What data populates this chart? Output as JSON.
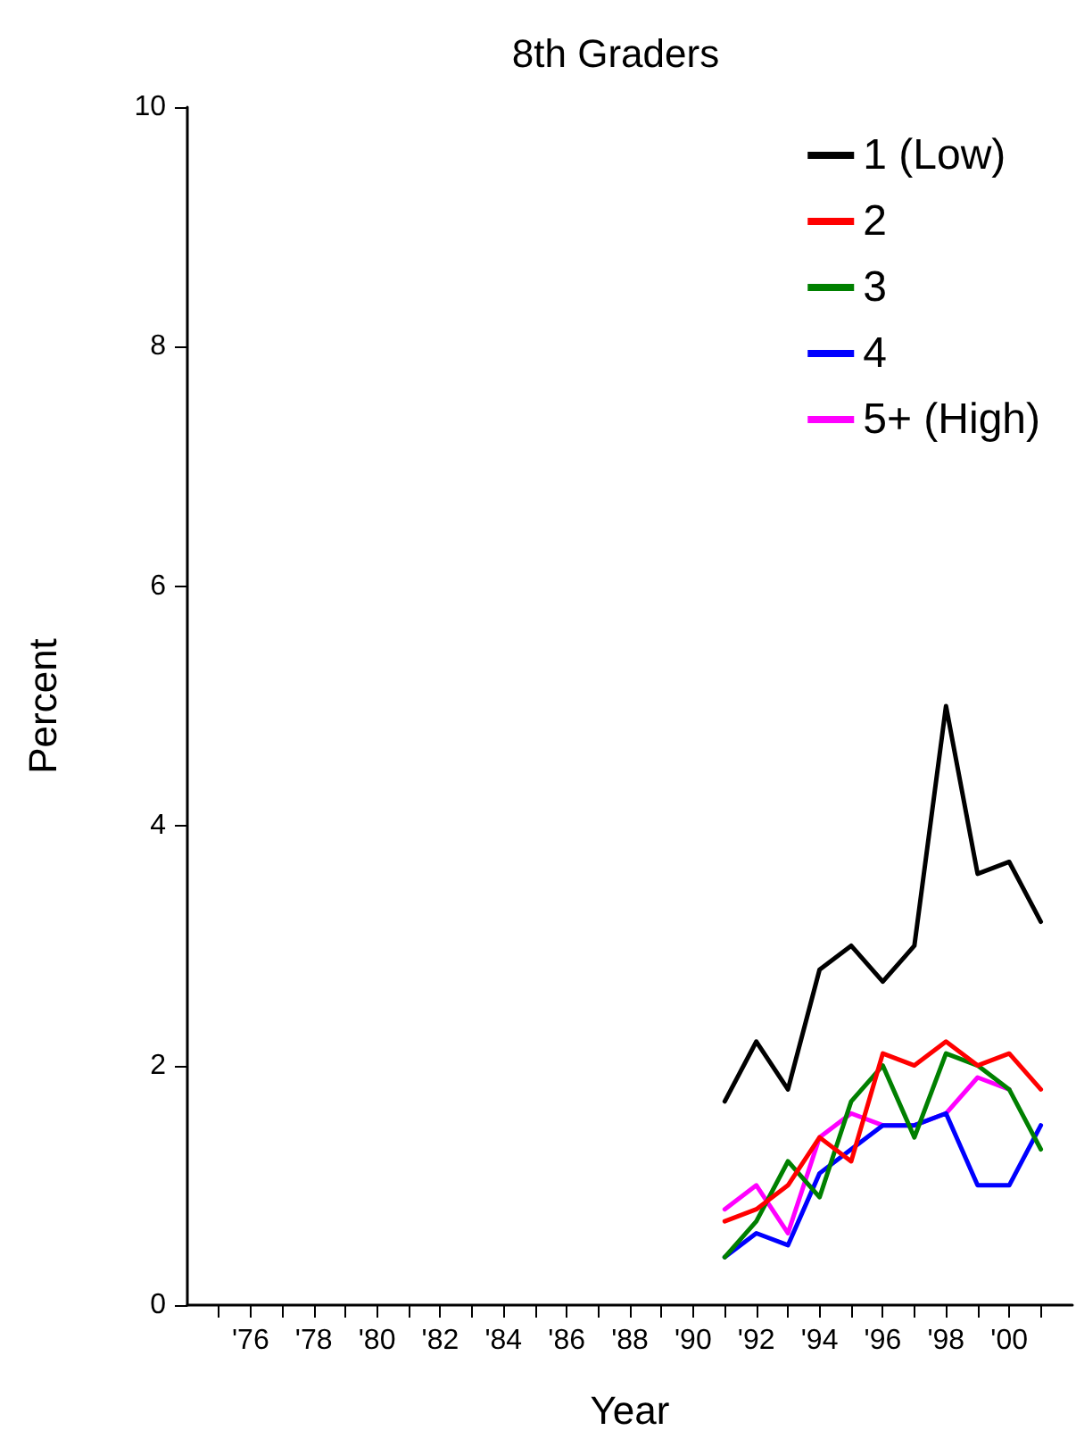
{
  "chart_data": {
    "type": "line",
    "title": "8th Graders",
    "xlabel": "Year",
    "ylabel": "Percent",
    "x": [
      1991,
      1992,
      1993,
      1994,
      1995,
      1996,
      1997,
      1998,
      1999,
      2000,
      2001
    ],
    "series": [
      {
        "name": "1 (Low)",
        "color": "#000000",
        "values": [
          1.7,
          2.2,
          1.8,
          2.8,
          3.0,
          2.7,
          3.0,
          5.0,
          3.6,
          3.7,
          3.2
        ]
      },
      {
        "name": "2",
        "color": "#ff0000",
        "values": [
          0.7,
          0.8,
          1.0,
          1.4,
          1.2,
          2.1,
          2.0,
          2.2,
          2.0,
          2.1,
          1.8
        ]
      },
      {
        "name": "3",
        "color": "#008000",
        "values": [
          0.4,
          0.7,
          1.2,
          0.9,
          1.7,
          2.0,
          1.4,
          2.1,
          2.0,
          1.8,
          1.3
        ]
      },
      {
        "name": "4",
        "color": "#0000ff",
        "values": [
          0.4,
          0.6,
          0.5,
          1.1,
          1.3,
          1.5,
          1.5,
          1.6,
          1.0,
          1.0,
          1.5
        ]
      },
      {
        "name": "5+ (High)",
        "color": "#ff00ff",
        "values": [
          0.8,
          1.0,
          0.6,
          1.4,
          1.6,
          1.5,
          1.5,
          1.6,
          1.9,
          1.8,
          null
        ]
      }
    ],
    "xlim": [
      1974,
      2002
    ],
    "xticks": [
      {
        "value": 1975,
        "label": null
      },
      {
        "value": 1976,
        "label": "'76"
      },
      {
        "value": 1977,
        "label": null
      },
      {
        "value": 1978,
        "label": "'78"
      },
      {
        "value": 1979,
        "label": null
      },
      {
        "value": 1980,
        "label": "'80"
      },
      {
        "value": 1981,
        "label": null
      },
      {
        "value": 1982,
        "label": "'82"
      },
      {
        "value": 1983,
        "label": null
      },
      {
        "value": 1984,
        "label": "'84"
      },
      {
        "value": 1985,
        "label": null
      },
      {
        "value": 1986,
        "label": "'86"
      },
      {
        "value": 1987,
        "label": null
      },
      {
        "value": 1988,
        "label": "'88"
      },
      {
        "value": 1989,
        "label": null
      },
      {
        "value": 1990,
        "label": "'90"
      },
      {
        "value": 1991,
        "label": null
      },
      {
        "value": 1992,
        "label": "'92"
      },
      {
        "value": 1993,
        "label": null
      },
      {
        "value": 1994,
        "label": "'94"
      },
      {
        "value": 1995,
        "label": null
      },
      {
        "value": 1996,
        "label": "'96"
      },
      {
        "value": 1997,
        "label": null
      },
      {
        "value": 1998,
        "label": "'98"
      },
      {
        "value": 1999,
        "label": null
      },
      {
        "value": 2000,
        "label": "'00"
      },
      {
        "value": 2001,
        "label": null
      }
    ],
    "ylim": [
      0,
      10
    ],
    "yticks": [
      0,
      2,
      4,
      6,
      8,
      10
    ],
    "grid": false,
    "legend": "top right",
    "marker": "none",
    "line_style": "solid"
  }
}
